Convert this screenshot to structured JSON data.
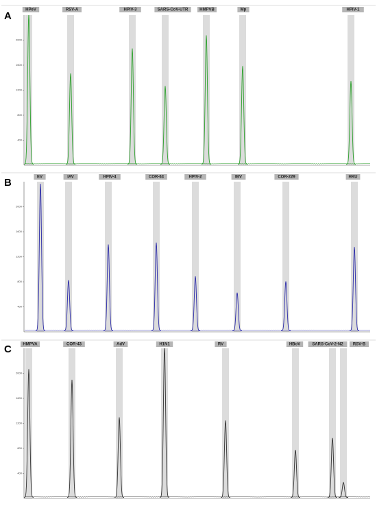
{
  "chart_data": [
    {
      "type": "peaks",
      "panel": "A",
      "color": "#2ca02c",
      "categories": [
        "HPeV",
        "RSV-A",
        "HPIV-3",
        "SARS-CoV-UTR",
        "HMPVB",
        "Mp",
        "HPIV-1"
      ],
      "values": [
        2400,
        1450,
        1850,
        1250,
        2060,
        1570,
        1330
      ],
      "ylim": [
        0,
        2400
      ],
      "yticks": [
        400,
        800,
        1200,
        1600,
        2000
      ]
    },
    {
      "type": "peaks",
      "panel": "B",
      "color": "#2a2aa8",
      "categories": [
        "EV",
        "IAV",
        "HPIV-4",
        "COR-63",
        "HPIV-2",
        "IBV",
        "COR-229",
        "HKU"
      ],
      "values": [
        2350,
        810,
        1380,
        1410,
        870,
        610,
        790,
        1340
      ],
      "ylim": [
        0,
        2400
      ],
      "yticks": [
        400,
        800,
        1200,
        1600,
        2000
      ]
    },
    {
      "type": "peaks",
      "panel": "C",
      "color": "#333333",
      "categories": [
        "HMPVA",
        "COR-43",
        "AdV",
        "H1N1",
        "RV",
        "HBoV",
        "SARS-CoV-2-N2",
        "RSV-B"
      ],
      "values": [
        2050,
        1880,
        1280,
        2400,
        1230,
        760,
        950,
        240
      ],
      "ylim": [
        0,
        2400
      ],
      "yticks": [
        400,
        800,
        1200,
        1600,
        2000
      ]
    }
  ]
}
